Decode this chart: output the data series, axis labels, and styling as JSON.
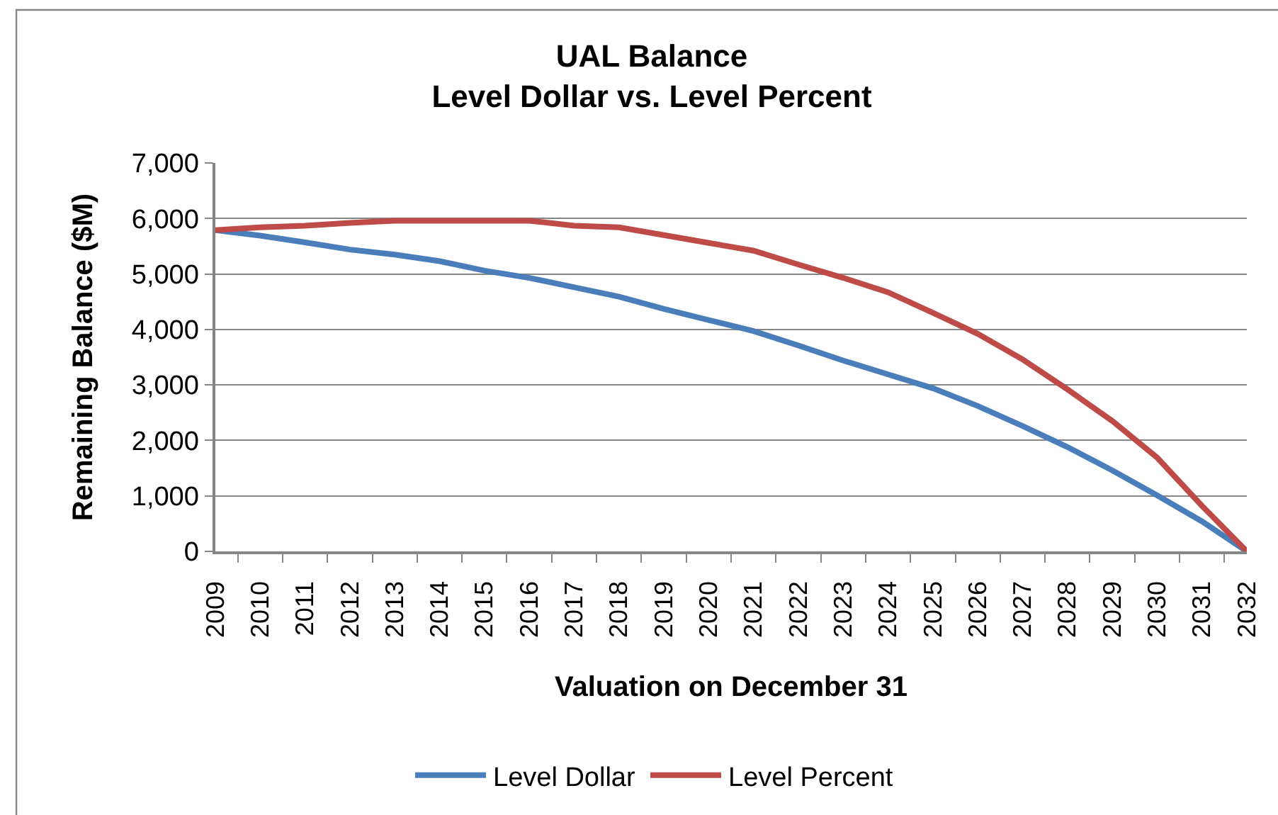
{
  "chart_data": {
    "type": "line",
    "title": "UAL Balance\nLevel Dollar vs. Level Percent",
    "xlabel": "Valuation on December 31",
    "ylabel": "Remaining Balance ($M)",
    "categories": [
      "2009",
      "2010",
      "2011",
      "2012",
      "2013",
      "2014",
      "2015",
      "2016",
      "2017",
      "2018",
      "2019",
      "2020",
      "2021",
      "2022",
      "2023",
      "2024",
      "2025",
      "2026",
      "2027",
      "2028",
      "2029",
      "2030",
      "2031",
      "2032"
    ],
    "series": [
      {
        "name": "Level Dollar",
        "color": "#4a7ebb",
        "values": [
          5790,
          5690,
          5570,
          5440,
          5350,
          5230,
          5060,
          4930,
          4760,
          4590,
          4370,
          4170,
          3970,
          3710,
          3440,
          3190,
          2940,
          2620,
          2260,
          1880,
          1460,
          1010,
          540,
          0
        ]
      },
      {
        "name": "Level Percent",
        "color": "#be4b48",
        "values": [
          5790,
          5840,
          5870,
          5920,
          5960,
          5960,
          5960,
          5960,
          5870,
          5840,
          5700,
          5560,
          5420,
          5170,
          4930,
          4670,
          4300,
          3920,
          3460,
          2920,
          2350,
          1690,
          820,
          0
        ]
      }
    ],
    "ylim": [
      0,
      7000
    ],
    "yticks": [
      0,
      {
        "value": 1000,
        "label": "1,000"
      },
      {
        "value": 2000,
        "label": "2,000"
      },
      {
        "value": 3000,
        "label": "3,000"
      },
      {
        "value": 4000,
        "label": "4,000"
      },
      {
        "value": 5000,
        "label": "5,000"
      },
      {
        "value": 6000,
        "label": "6,000"
      },
      {
        "value": 7000,
        "label": "7,000"
      }
    ],
    "grid": "y",
    "legend": "bottom",
    "marker": "none",
    "line_style": "solid"
  }
}
